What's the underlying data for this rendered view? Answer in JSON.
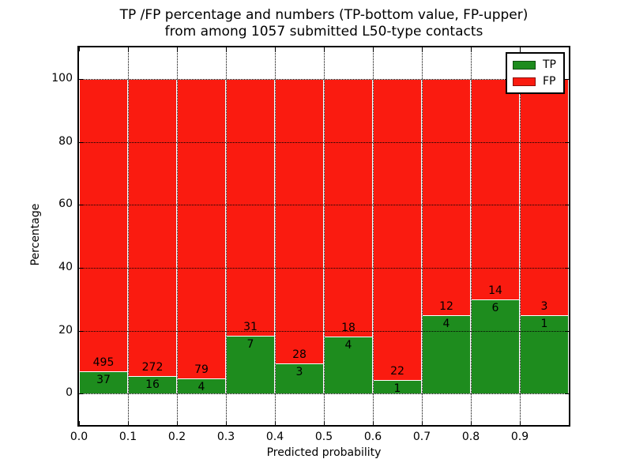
{
  "title": {
    "line1": "TP /FP percentage and numbers (TP-bottom value, FP-upper)",
    "line2": "from among 1057 submitted L50-type contacts"
  },
  "chart_data": {
    "type": "bar",
    "stacked": true,
    "normalized": "each bar scaled to 100%, segment heights are TP/(TP+FP) and FP/(TP+FP) percentages",
    "bins": [
      0.0,
      0.1,
      0.2,
      0.3,
      0.4,
      0.5,
      0.6,
      0.7,
      0.8,
      0.9
    ],
    "bin_width": 0.1,
    "series": [
      {
        "name": "TP",
        "values": [
          37,
          16,
          4,
          7,
          3,
          4,
          1,
          4,
          6,
          1
        ],
        "color": "#1e8c1e"
      },
      {
        "name": "FP",
        "values": [
          495,
          272,
          79,
          31,
          28,
          18,
          22,
          12,
          14,
          3
        ],
        "color": "#fa1b10"
      }
    ],
    "xlabel": "Predicted probability",
    "ylabel": "Percentage",
    "x_tick_values": [
      0.0,
      0.1,
      0.2,
      0.3,
      0.4,
      0.5,
      0.6,
      0.7,
      0.8,
      0.9
    ],
    "x_tick_labels": [
      "0.0",
      "0.1",
      "0.2",
      "0.3",
      "0.4",
      "0.5",
      "0.6",
      "0.7",
      "0.8",
      "0.9"
    ],
    "y_tick_values": [
      0,
      20,
      40,
      60,
      80,
      100
    ],
    "y_tick_labels": [
      "0",
      "20",
      "40",
      "60",
      "80",
      "100"
    ],
    "xlim": [
      0.0,
      1.0
    ],
    "ylim": [
      -10,
      110
    ],
    "grid": true,
    "grid_style": "dotted",
    "legend": {
      "position": "upper right",
      "entries": [
        {
          "label": "TP",
          "color": "#1e8c1e"
        },
        {
          "label": "FP",
          "color": "#fa1b10"
        }
      ]
    }
  }
}
